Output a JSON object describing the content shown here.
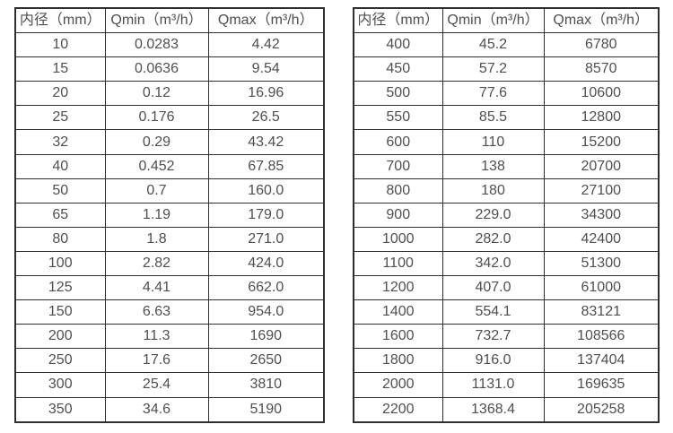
{
  "page": {
    "background_color": "#ffffff",
    "border_color": "#2f2f2f",
    "text_color": "#4f4f4f"
  },
  "left_table": {
    "headers": [
      "内径（mm）",
      "Qmin（m³/h）",
      "Qmax（m³/h）"
    ],
    "rows": [
      [
        "10",
        "0.0283",
        "4.42"
      ],
      [
        "15",
        "0.0636",
        "9.54"
      ],
      [
        "20",
        "0.12",
        "16.96"
      ],
      [
        "25",
        "0.176",
        "26.5"
      ],
      [
        "32",
        "0.29",
        "43.42"
      ],
      [
        "40",
        "0.452",
        "67.85"
      ],
      [
        "50",
        "0.7",
        "160.0"
      ],
      [
        "65",
        "1.19",
        "179.0"
      ],
      [
        "80",
        "1.8",
        "271.0"
      ],
      [
        "100",
        "2.82",
        "424.0"
      ],
      [
        "125",
        "4.41",
        "662.0"
      ],
      [
        "150",
        "6.63",
        "954.0"
      ],
      [
        "200",
        "11.3",
        "1690"
      ],
      [
        "250",
        "17.6",
        "2650"
      ],
      [
        "300",
        "25.4",
        "3810"
      ],
      [
        "350",
        "34.6",
        "5190"
      ]
    ]
  },
  "right_table": {
    "headers": [
      "内径（mm）",
      "Qmin（m³/h）",
      "Qmax（m³/h）"
    ],
    "rows": [
      [
        "400",
        "45.2",
        "6780"
      ],
      [
        "450",
        "57.2",
        "8570"
      ],
      [
        "500",
        "77.6",
        "10600"
      ],
      [
        "550",
        "85.5",
        "12800"
      ],
      [
        "600",
        "110",
        "15200"
      ],
      [
        "700",
        "138",
        "20700"
      ],
      [
        "800",
        "180",
        "27100"
      ],
      [
        "900",
        "229.0",
        "34300"
      ],
      [
        "1000",
        "282.0",
        "42400"
      ],
      [
        "1100",
        "342.0",
        "51300"
      ],
      [
        "1200",
        "407.0",
        "61000"
      ],
      [
        "1400",
        "554.1",
        "83121"
      ],
      [
        "1600",
        "732.7",
        "108566"
      ],
      [
        "1800",
        "916.0",
        "137404"
      ],
      [
        "2000",
        "1131.0",
        "169635"
      ],
      [
        "2200",
        "1368.4",
        "205258"
      ]
    ]
  }
}
